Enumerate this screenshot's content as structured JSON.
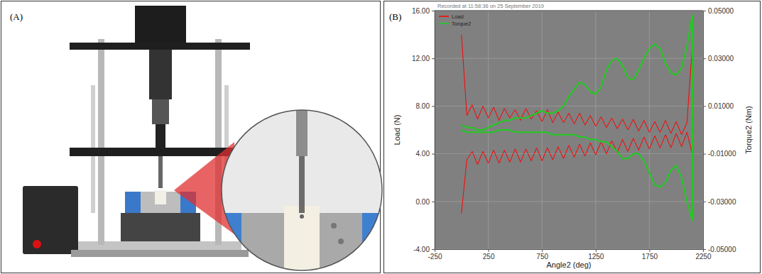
{
  "panel_labels": [
    "(A)",
    "(B)"
  ],
  "chart_data": {
    "type": "line",
    "subtitle": "Recorded at 11:58:36 on 25 September 2019",
    "x_label": "Angle2 (deg)",
    "y_label": "Load (N)",
    "y2_label": "Torque2 (Nm)",
    "legend": "upper left",
    "grid": true,
    "xlim": [
      -250,
      2250
    ],
    "xticks": [
      -250,
      250,
      750,
      1250,
      1750,
      2250
    ],
    "ylim": [
      -4,
      16
    ],
    "yticks": [
      {
        "value": -4,
        "label": "-4.00"
      },
      {
        "value": 0,
        "label": "0.00"
      },
      {
        "value": 4,
        "label": "4.00"
      },
      {
        "value": 8,
        "label": "8.00"
      },
      {
        "value": 12,
        "label": "12.00"
      },
      {
        "value": 16,
        "label": "16.00"
      }
    ],
    "y2lim": [
      -0.05,
      0.05
    ],
    "y2ticks": [
      {
        "value": -0.05,
        "label": "-0.05000"
      },
      {
        "value": -0.03,
        "label": "-0.03000"
      },
      {
        "value": -0.01,
        "label": "-0.01000"
      },
      {
        "value": 0.01,
        "label": "0.01000"
      },
      {
        "value": 0.03,
        "label": "0.03000"
      },
      {
        "value": 0.05,
        "label": "0.05000"
      }
    ],
    "x": [
      0,
      50,
      100,
      150,
      200,
      250,
      300,
      350,
      400,
      450,
      500,
      550,
      600,
      650,
      700,
      750,
      800,
      850,
      900,
      950,
      1000,
      1050,
      1100,
      1150,
      1200,
      1250,
      1300,
      1350,
      1400,
      1450,
      1500,
      1550,
      1600,
      1650,
      1700,
      1750,
      1800,
      1850,
      1900,
      1950,
      2000,
      2050,
      2100,
      2150,
      2150,
      2100,
      2050,
      2000,
      1950,
      1900,
      1850,
      1800,
      1750,
      1700,
      1650,
      1600,
      1550,
      1500,
      1450,
      1400,
      1350,
      1300,
      1250,
      1200,
      1150,
      1100,
      1050,
      1000,
      950,
      900,
      850,
      800,
      750,
      700,
      650,
      600,
      550,
      500,
      450,
      400,
      350,
      300,
      250,
      200,
      150,
      100,
      50,
      0
    ],
    "series": [
      {
        "name": "Load",
        "color": "#ff0000",
        "values": [
          14.0,
          7.2,
          8.1,
          6.9,
          8.0,
          7.0,
          7.9,
          6.8,
          7.8,
          7.0,
          7.7,
          6.8,
          7.8,
          6.9,
          7.6,
          6.7,
          7.7,
          6.6,
          7.5,
          6.6,
          7.4,
          6.5,
          7.4,
          6.4,
          7.2,
          6.3,
          7.1,
          6.2,
          7.0,
          6.1,
          6.9,
          6.0,
          6.9,
          5.9,
          6.8,
          5.8,
          6.7,
          5.8,
          6.8,
          5.7,
          6.7,
          5.6,
          6.6,
          13.0,
          4.0,
          5.8,
          4.6,
          5.7,
          4.5,
          5.6,
          4.5,
          5.5,
          4.4,
          5.4,
          4.3,
          5.3,
          4.2,
          5.2,
          4.1,
          5.1,
          4.0,
          5.0,
          3.9,
          4.9,
          3.8,
          4.8,
          3.7,
          4.7,
          3.6,
          4.6,
          3.5,
          4.5,
          3.4,
          4.5,
          3.4,
          4.4,
          3.3,
          4.4,
          3.3,
          4.3,
          3.2,
          4.3,
          3.2,
          4.2,
          3.1,
          4.2,
          3.5,
          -1.0
        ]
      },
      {
        "name": "Torque2",
        "color": "#1ecc1e",
        "axis": "y2",
        "values": [
          0.002,
          0.001,
          0.001,
          0.0,
          0.0,
          0.001,
          0.002,
          0.003,
          0.004,
          0.004,
          0.005,
          0.005,
          0.005,
          0.006,
          0.007,
          0.008,
          0.007,
          0.007,
          0.008,
          0.01,
          0.014,
          0.017,
          0.02,
          0.019,
          0.016,
          0.015,
          0.018,
          0.025,
          0.029,
          0.03,
          0.027,
          0.022,
          0.021,
          0.025,
          0.03,
          0.034,
          0.036,
          0.034,
          0.028,
          0.024,
          0.023,
          0.026,
          0.035,
          0.048,
          -0.038,
          -0.03,
          -0.02,
          -0.015,
          -0.017,
          -0.022,
          -0.024,
          -0.023,
          -0.018,
          -0.013,
          -0.01,
          -0.01,
          -0.012,
          -0.012,
          -0.009,
          -0.007,
          -0.005,
          -0.005,
          -0.004,
          -0.004,
          -0.003,
          -0.003,
          -0.002,
          -0.002,
          -0.002,
          -0.002,
          -0.002,
          -0.001,
          -0.001,
          -0.001,
          -0.001,
          -0.001,
          -0.001,
          -0.001,
          0.0,
          0.0,
          0.0,
          -0.001,
          -0.001,
          -0.001,
          -0.001,
          -0.001,
          -0.001,
          0.0
        ]
      }
    ]
  }
}
